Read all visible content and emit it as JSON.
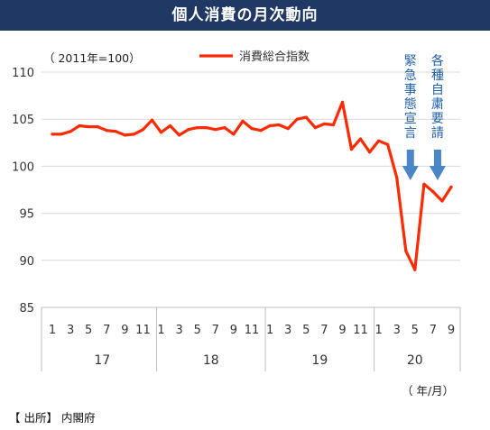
{
  "title": "個人消費の月次動向",
  "source": "【 出所】 内閣府",
  "chart_data": {
    "type": "line",
    "ylabel": "（ 2011年=100）",
    "xlabel": "（ 年/月）",
    "ylim": [
      85,
      110
    ],
    "yticks": [
      85,
      90,
      95,
      100,
      105,
      110
    ],
    "grid": "horizontal",
    "legend": "top-center",
    "years": [
      {
        "label": "17",
        "start_index": 0,
        "count": 12
      },
      {
        "label": "18",
        "start_index": 12,
        "count": 12
      },
      {
        "label": "19",
        "start_index": 24,
        "count": 12
      },
      {
        "label": "20",
        "start_index": 36,
        "count": 9
      }
    ],
    "x_month_labels": [
      "1",
      "",
      "3",
      "",
      "5",
      "",
      "7",
      "",
      "9",
      "",
      "11",
      "",
      "1",
      "",
      "3",
      "",
      "5",
      "",
      "7",
      "",
      "9",
      "",
      "11",
      "",
      "1",
      "",
      "3",
      "",
      "5",
      "",
      "7",
      "",
      "9",
      "",
      "11",
      "",
      "1",
      "",
      "3",
      "",
      "5",
      "",
      "7",
      "",
      "9"
    ],
    "series": [
      {
        "name": "消費総合指数",
        "color": "#ff2a00",
        "values": [
          103.4,
          103.4,
          103.7,
          104.3,
          104.2,
          104.2,
          103.8,
          103.7,
          103.3,
          103.4,
          103.9,
          104.9,
          103.6,
          104.3,
          103.3,
          103.9,
          104.1,
          104.1,
          103.9,
          104.1,
          103.4,
          104.8,
          104.0,
          103.8,
          104.3,
          104.4,
          104.0,
          105.0,
          105.2,
          104.1,
          104.5,
          104.4,
          106.8,
          101.8,
          102.9,
          101.5,
          102.7,
          102.3,
          98.8,
          91.0,
          89.0,
          98.1,
          97.3,
          96.3,
          97.8
        ]
      }
    ],
    "annotations": [
      {
        "text": "緊急事態宣言",
        "month_index": 39.5,
        "color": "#4a86c8"
      },
      {
        "text": "各種自粛要請",
        "month_index": 42.5,
        "color": "#4a86c8"
      }
    ]
  }
}
